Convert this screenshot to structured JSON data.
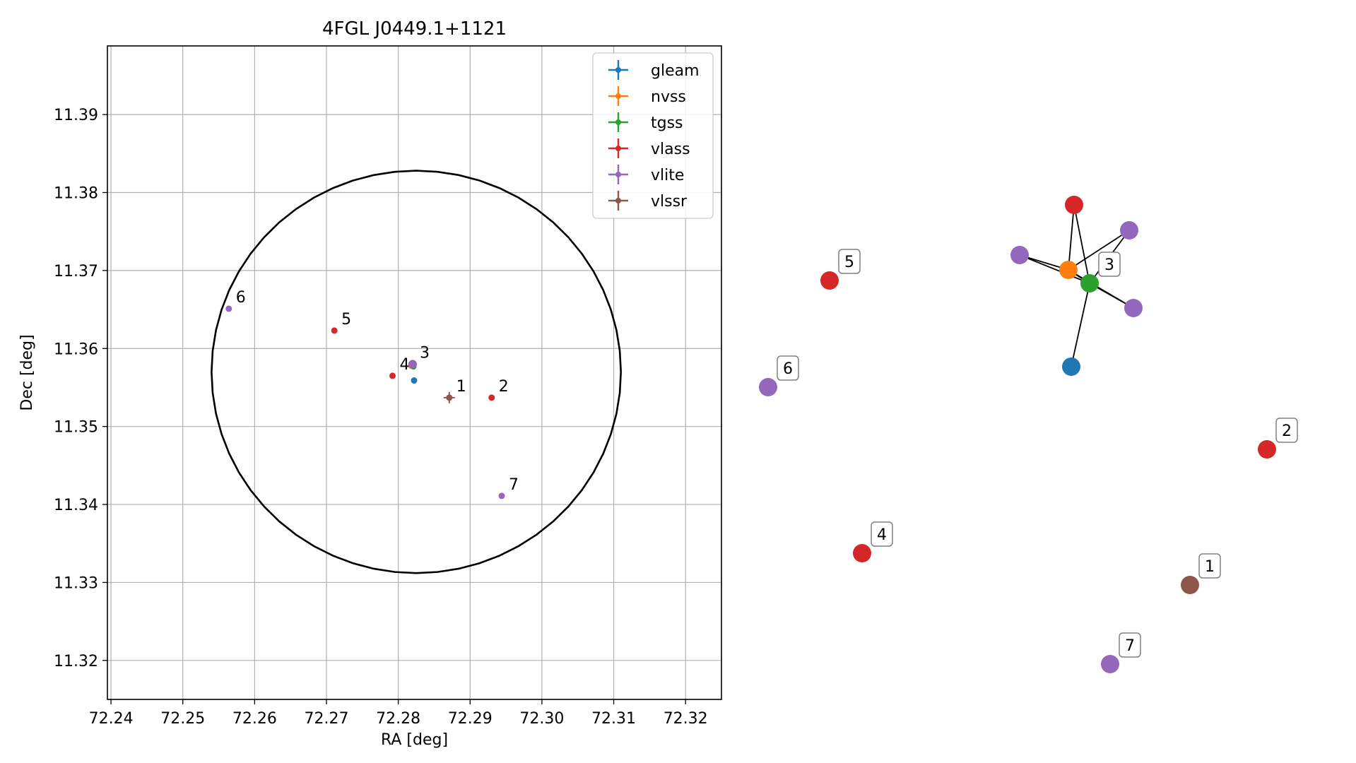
{
  "chart_data": [
    {
      "type": "scatter",
      "title": "4FGL J0449.1+1121",
      "xlabel": "RA [deg]",
      "ylabel": "Dec [deg]",
      "xlim": [
        72.2395,
        72.325
      ],
      "ylim": [
        11.315,
        11.3988
      ],
      "xticks": [
        72.24,
        72.25,
        72.26,
        72.27,
        72.28,
        72.29,
        72.3,
        72.31,
        72.32
      ],
      "xtick_labels": [
        "72.24",
        "72.25",
        "72.26",
        "72.27",
        "72.28",
        "72.29",
        "72.30",
        "72.31",
        "72.32"
      ],
      "yticks": [
        11.32,
        11.33,
        11.34,
        11.35,
        11.36,
        11.37,
        11.38,
        11.39
      ],
      "ytick_labels": [
        "11.32",
        "11.33",
        "11.34",
        "11.35",
        "11.36",
        "11.37",
        "11.38",
        "11.39"
      ],
      "grid": true,
      "legend_position": "top-right",
      "ellipse": {
        "center": [
          72.2825,
          11.357
        ],
        "ra_radius": 0.0285,
        "dec_radius": 0.0258,
        "color": "#000000"
      },
      "series": [
        {
          "name": "gleam",
          "color": "#1f77b4",
          "points": [
            {
              "ra": 72.2822,
              "dec": 11.3559,
              "label": ""
            }
          ]
        },
        {
          "name": "nvss",
          "color": "#ff7f0e",
          "points": [
            {
              "ra": 72.2818,
              "dec": 11.3578,
              "label": ""
            }
          ]
        },
        {
          "name": "tgss",
          "color": "#2ca02c",
          "points": [
            {
              "ra": 72.2821,
              "dec": 11.3577,
              "label": ""
            }
          ]
        },
        {
          "name": "vlass",
          "color": "#d62728",
          "points": [
            {
              "ra": 72.2711,
              "dec": 11.3623,
              "label": "5"
            },
            {
              "ra": 72.2792,
              "dec": 11.3565,
              "label": "4"
            },
            {
              "ra": 72.293,
              "dec": 11.3537,
              "label": "2"
            }
          ]
        },
        {
          "name": "vlite",
          "color": "#9467bd",
          "points": [
            {
              "ra": 72.2564,
              "dec": 11.3651,
              "label": "6"
            },
            {
              "ra": 72.282,
              "dec": 11.358,
              "label": "3"
            },
            {
              "ra": 72.2944,
              "dec": 11.3411,
              "label": "7"
            }
          ]
        },
        {
          "name": "vlssr",
          "color": "#8c564b",
          "points": [
            {
              "ra": 72.2871,
              "dec": 11.3537,
              "label": "1"
            }
          ]
        }
      ]
    },
    {
      "type": "network",
      "nodes": [
        {
          "id": "n1",
          "color": "#8c564b",
          "label": "1"
        },
        {
          "id": "n2",
          "color": "#d62728",
          "label": "2"
        },
        {
          "id": "n3",
          "color": "#2ca02c",
          "label": "3"
        },
        {
          "id": "n3a",
          "color": "#ff7f0e",
          "label": ""
        },
        {
          "id": "n3b",
          "color": "#1f77b4",
          "label": ""
        },
        {
          "id": "n3c",
          "color": "#d62728",
          "label": ""
        },
        {
          "id": "n3d",
          "color": "#9467bd",
          "label": ""
        },
        {
          "id": "n3e",
          "color": "#9467bd",
          "label": ""
        },
        {
          "id": "n3f",
          "color": "#9467bd",
          "label": ""
        },
        {
          "id": "n4",
          "color": "#d62728",
          "label": "4"
        },
        {
          "id": "n5",
          "color": "#d62728",
          "label": "5"
        },
        {
          "id": "n6",
          "color": "#9467bd",
          "label": "6"
        },
        {
          "id": "n7",
          "color": "#9467bd",
          "label": "7"
        }
      ],
      "edges": [
        [
          "n3",
          "n3a"
        ],
        [
          "n3",
          "n3b"
        ],
        [
          "n3",
          "n3c"
        ],
        [
          "n3",
          "n3d"
        ],
        [
          "n3",
          "n3e"
        ],
        [
          "n3",
          "n3f"
        ],
        [
          "n3a",
          "n3c"
        ],
        [
          "n3a",
          "n3d"
        ],
        [
          "n3a",
          "n3e"
        ],
        [
          "n3a",
          "n3f"
        ]
      ]
    }
  ]
}
